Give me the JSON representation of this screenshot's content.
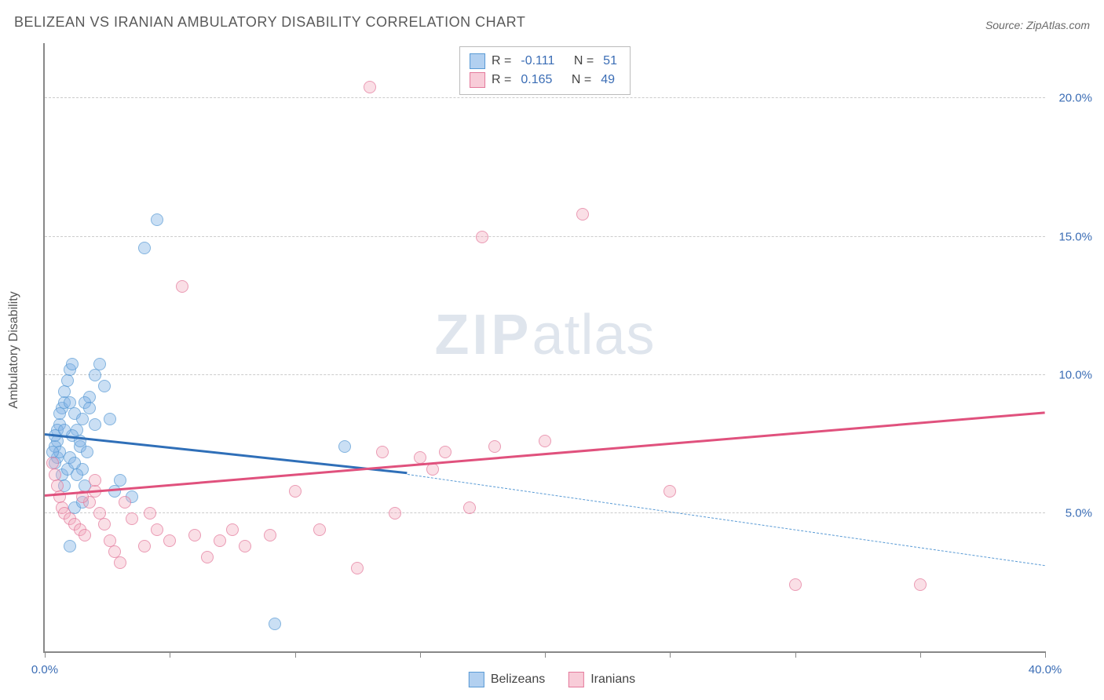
{
  "title": "BELIZEAN VS IRANIAN AMBULATORY DISABILITY CORRELATION CHART",
  "source": "Source: ZipAtlas.com",
  "yaxis_label": "Ambulatory Disability",
  "watermark_bold": "ZIP",
  "watermark_rest": "atlas",
  "chart": {
    "type": "scatter",
    "xlim": [
      0,
      40
    ],
    "ylim": [
      0,
      22
    ],
    "xtick_positions": [
      0,
      5,
      10,
      15,
      20,
      25,
      30,
      35,
      40
    ],
    "xtick_labels": {
      "0": "0.0%",
      "40": "40.0%"
    },
    "ytick_positions": [
      5,
      10,
      15,
      20
    ],
    "ytick_labels": {
      "5": "5.0%",
      "10": "10.0%",
      "15": "15.0%",
      "20": "20.0%"
    },
    "grid_color": "#cccccc",
    "background_color": "#ffffff",
    "marker_size": 16,
    "series": [
      {
        "name": "Belizeans",
        "color_fill": "rgba(127,176,230,0.55)",
        "color_stroke": "#5a9bd5",
        "R": "-0.111",
        "N": "51",
        "trend": {
          "x1": 0,
          "y1": 7.8,
          "x2": 14.5,
          "y2": 6.4,
          "color": "#2f6fb8",
          "width": 3,
          "dash": false
        },
        "trend_ext": {
          "x1": 14.5,
          "y1": 6.4,
          "x2": 40,
          "y2": 3.1,
          "color": "#5a9bd5",
          "width": 1.5,
          "dash": true
        },
        "points": [
          [
            0.4,
            6.8
          ],
          [
            0.5,
            7.0
          ],
          [
            0.5,
            7.6
          ],
          [
            0.6,
            8.2
          ],
          [
            0.7,
            8.8
          ],
          [
            0.8,
            9.0
          ],
          [
            0.8,
            9.4
          ],
          [
            0.9,
            9.8
          ],
          [
            1.0,
            10.2
          ],
          [
            1.1,
            10.4
          ],
          [
            1.2,
            8.6
          ],
          [
            1.3,
            8.0
          ],
          [
            1.4,
            7.4
          ],
          [
            1.5,
            6.6
          ],
          [
            1.6,
            6.0
          ],
          [
            1.7,
            7.2
          ],
          [
            1.8,
            9.2
          ],
          [
            2.0,
            10.0
          ],
          [
            2.2,
            10.4
          ],
          [
            2.4,
            9.6
          ],
          [
            2.6,
            8.4
          ],
          [
            2.8,
            5.8
          ],
          [
            3.0,
            6.2
          ],
          [
            3.5,
            5.6
          ],
          [
            4.0,
            14.6
          ],
          [
            4.5,
            15.6
          ],
          [
            1.0,
            3.8
          ],
          [
            1.2,
            5.2
          ],
          [
            1.5,
            5.4
          ],
          [
            0.4,
            7.4
          ],
          [
            0.5,
            8.0
          ],
          [
            0.6,
            7.2
          ],
          [
            0.7,
            6.4
          ],
          [
            0.8,
            6.0
          ],
          [
            0.9,
            6.6
          ],
          [
            1.0,
            7.0
          ],
          [
            1.1,
            7.8
          ],
          [
            1.2,
            6.8
          ],
          [
            1.3,
            6.4
          ],
          [
            1.4,
            7.6
          ],
          [
            1.5,
            8.4
          ],
          [
            1.6,
            9.0
          ],
          [
            1.8,
            8.8
          ],
          [
            2.0,
            8.2
          ],
          [
            9.2,
            1.0
          ],
          [
            12.0,
            7.4
          ],
          [
            0.3,
            7.2
          ],
          [
            0.4,
            7.8
          ],
          [
            0.6,
            8.6
          ],
          [
            0.8,
            8.0
          ],
          [
            1.0,
            9.0
          ]
        ]
      },
      {
        "name": "Iranians",
        "color_fill": "rgba(244,170,190,0.5)",
        "color_stroke": "#e47a9c",
        "R": "0.165",
        "N": "49",
        "trend": {
          "x1": 0,
          "y1": 5.6,
          "x2": 40,
          "y2": 8.6,
          "color": "#e0517d",
          "width": 3,
          "dash": false
        },
        "points": [
          [
            0.3,
            6.8
          ],
          [
            0.4,
            6.4
          ],
          [
            0.5,
            6.0
          ],
          [
            0.6,
            5.6
          ],
          [
            0.7,
            5.2
          ],
          [
            0.8,
            5.0
          ],
          [
            1.0,
            4.8
          ],
          [
            1.2,
            4.6
          ],
          [
            1.4,
            4.4
          ],
          [
            1.6,
            4.2
          ],
          [
            1.8,
            5.4
          ],
          [
            2.0,
            5.8
          ],
          [
            2.2,
            5.0
          ],
          [
            2.4,
            4.6
          ],
          [
            2.6,
            4.0
          ],
          [
            2.8,
            3.6
          ],
          [
            3.0,
            3.2
          ],
          [
            3.5,
            4.8
          ],
          [
            4.0,
            3.8
          ],
          [
            4.5,
            4.4
          ],
          [
            5.0,
            4.0
          ],
          [
            5.5,
            13.2
          ],
          [
            6.0,
            4.2
          ],
          [
            6.5,
            3.4
          ],
          [
            7.0,
            4.0
          ],
          [
            7.5,
            4.4
          ],
          [
            8.0,
            3.8
          ],
          [
            9.0,
            4.2
          ],
          [
            10.0,
            5.8
          ],
          [
            11.0,
            4.4
          ],
          [
            12.5,
            3.0
          ],
          [
            13.0,
            20.4
          ],
          [
            13.5,
            7.2
          ],
          [
            14.0,
            5.0
          ],
          [
            15.0,
            7.0
          ],
          [
            15.5,
            6.6
          ],
          [
            16.0,
            7.2
          ],
          [
            17.0,
            5.2
          ],
          [
            17.5,
            15.0
          ],
          [
            18.0,
            7.4
          ],
          [
            20.0,
            7.6
          ],
          [
            21.5,
            15.8
          ],
          [
            25.0,
            5.8
          ],
          [
            30.0,
            2.4
          ],
          [
            35.0,
            2.4
          ],
          [
            1.5,
            5.6
          ],
          [
            2.0,
            6.2
          ],
          [
            3.2,
            5.4
          ],
          [
            4.2,
            5.0
          ]
        ]
      }
    ]
  },
  "stat_legend_labels": {
    "R": "R =",
    "N": "N ="
  },
  "bottom_legend": [
    "Belizeans",
    "Iranians"
  ]
}
